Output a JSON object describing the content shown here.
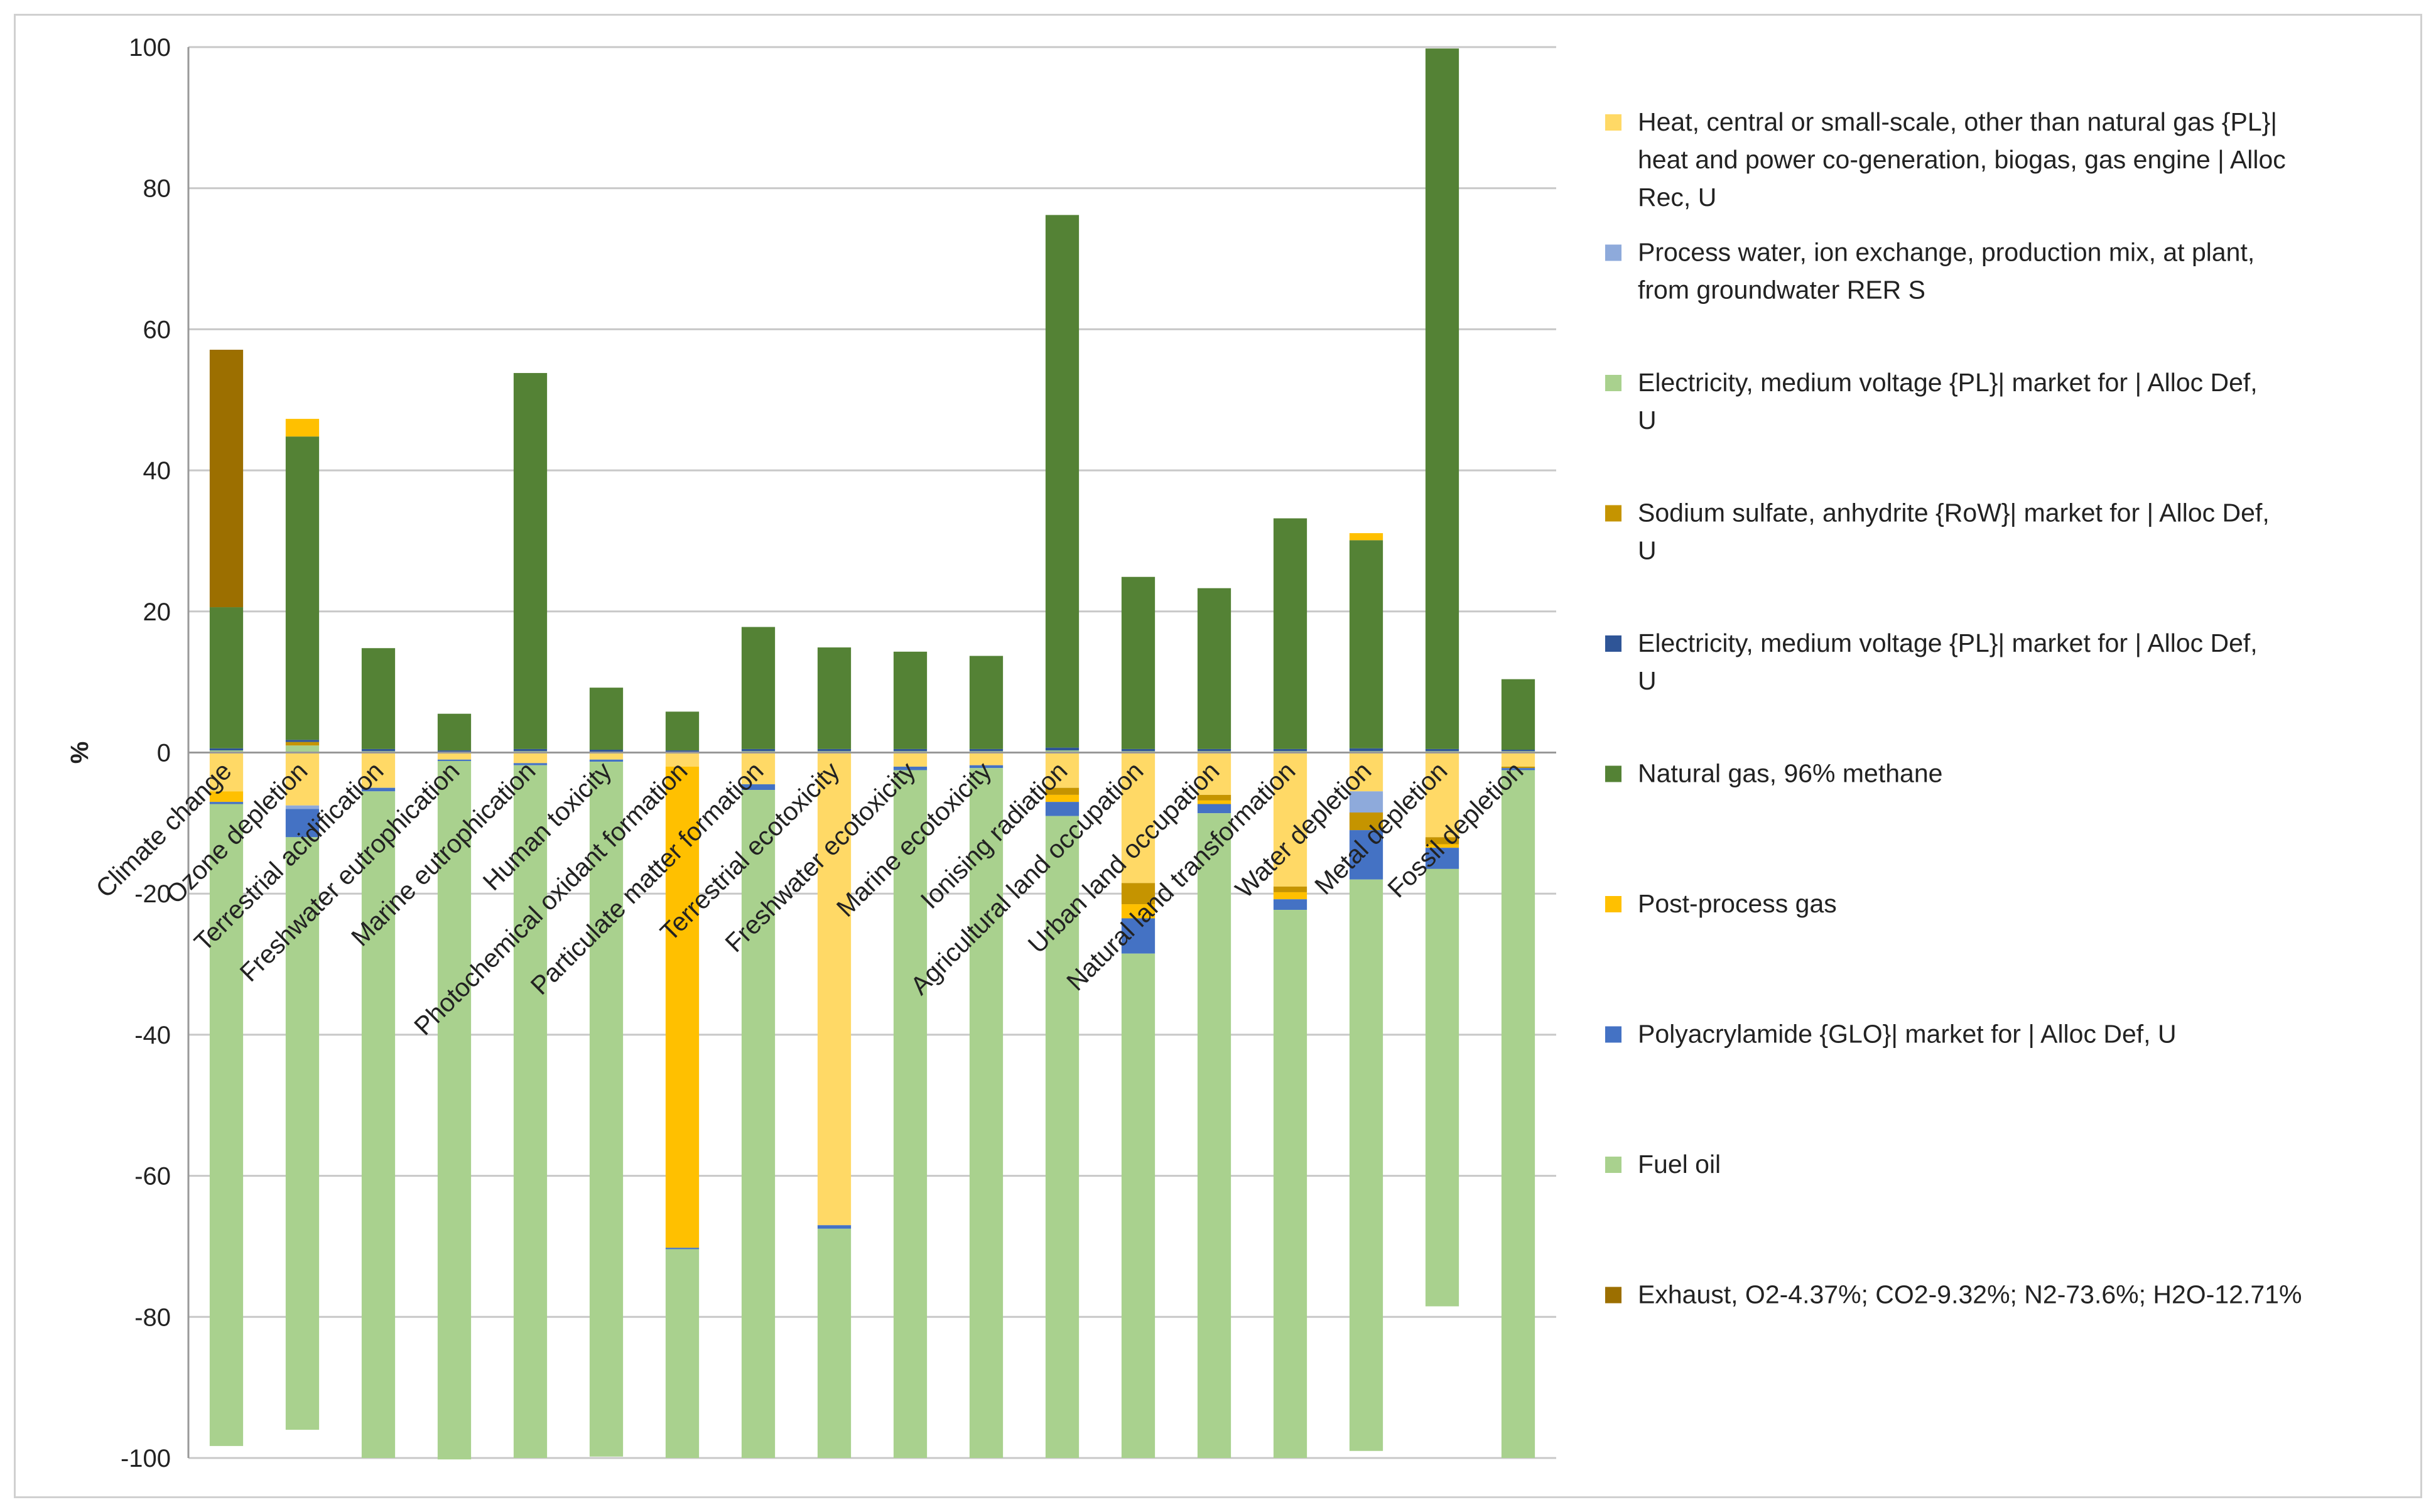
{
  "chart_data": {
    "type": "bar",
    "stacked": true,
    "title": "",
    "xlabel": "",
    "ylabel": "%",
    "ylim": [
      -100,
      100
    ],
    "yticks": [
      "-100",
      "-80",
      "-60",
      "-40",
      "-20",
      "0",
      "20",
      "40",
      "60",
      "80",
      "100"
    ],
    "categories": [
      "Climate change",
      "Ozone depletion",
      "Terrestrial acidification",
      "Freshwater eutrophication",
      "Marine eutrophication",
      "Human toxicity",
      "Photochemical oxidant formation",
      "Particulate matter formation",
      "Terrestrial ecotoxicity",
      "Freshwater ecotoxicity",
      "Marine ecotoxicity",
      "Ionising radiation",
      "Agricultural land occupation",
      "Urban land occupation",
      "Natural land transformation",
      "Water depletion",
      "Metal depletion",
      "Fossil depletion"
    ],
    "series": [
      {
        "name": "Heat, central or small-scale, other than natural gas {PL}| heat and power co-generation, biogas, gas engine | Alloc Rec, U",
        "color": "#ffd966",
        "values": [
          -5.5,
          -7.5,
          -5,
          -1,
          -1.5,
          -1,
          -2,
          -4.5,
          -67,
          -2,
          -1.8,
          -5,
          -18.5,
          -6,
          -19,
          -5.5,
          -12,
          -2
        ]
      },
      {
        "name": "Process water, ion exchange, production mix, at plant, from groundwater RER S",
        "color": "#8eaadb",
        "values": [
          0,
          -0.5,
          0,
          0,
          0,
          0,
          0,
          0,
          0,
          0,
          0,
          0,
          0,
          0,
          0,
          -3,
          0,
          0
        ]
      },
      {
        "name": "Electricity, medium voltage {PL}| market for | Alloc Def, U",
        "color": "#a9d18e",
        "values": [
          0.3,
          1,
          0.2,
          0.1,
          0.2,
          0.1,
          0.1,
          0.2,
          0.2,
          0.2,
          0.2,
          0.3,
          0.2,
          0.2,
          0.2,
          0.2,
          0.2,
          0.2
        ]
      },
      {
        "name": "Sodium sulfate, anhydrite {RoW}| market for | Alloc Def, U",
        "color": "#c59400",
        "values": [
          0,
          0.5,
          0,
          0,
          0,
          0,
          0,
          0,
          0,
          0,
          0,
          -1,
          -3,
          -0.8,
          -0.8,
          -2.5,
          -1,
          -0.2
        ]
      },
      {
        "name": "Electricity, medium voltage {PL}| market for | Alloc Def, U",
        "color": "#2f5597",
        "values": [
          0.3,
          0.3,
          0.3,
          0.2,
          0.3,
          0.3,
          0.2,
          0.3,
          0.3,
          0.3,
          0.3,
          0.4,
          0.3,
          0.3,
          0.3,
          0.4,
          0.3,
          0.2
        ]
      },
      {
        "name": "Natural gas, 96% methane",
        "color": "#548235",
        "values": [
          20,
          43,
          14.3,
          5.2,
          53.3,
          8.8,
          5.5,
          17.3,
          14.4,
          13.8,
          13.2,
          75.5,
          24.4,
          22.8,
          32.7,
          29.5,
          99.3,
          10
        ]
      },
      {
        "name": "Post-process gas",
        "color": "#ffc000",
        "values": [
          -1.5,
          2.5,
          0,
          0,
          0,
          0,
          -68.2,
          0,
          0,
          0,
          0,
          -1,
          -2,
          -0.5,
          -1,
          1,
          -0.5,
          0
        ]
      },
      {
        "name": "Polyacrylamide {GLO}| market for | Alloc Def, U",
        "color": "#4472c4",
        "values": [
          -0.3,
          -4,
          -0.5,
          -0.2,
          -0.3,
          -0.3,
          -0.2,
          -0.8,
          -0.5,
          -0.5,
          -0.4,
          -2,
          -5,
          -1.3,
          -1.5,
          -7,
          -3,
          -0.3
        ]
      },
      {
        "name": "Fuel oil",
        "color": "#a9d18e",
        "values": [
          -91,
          -84,
          -94.5,
          -99,
          -98.2,
          -98.5,
          -29.6,
          -94.7,
          -32.5,
          -97.5,
          -97.8,
          -91,
          -71.5,
          -91.4,
          -77.7,
          -81,
          -62,
          -97.5
        ]
      },
      {
        "name": "Exhaust, O2-4.37%; CO2-9.32%; N2-73.6%; H2O-12.71%",
        "color": "#9c6f00",
        "values": [
          36.5,
          0,
          0,
          0,
          0,
          0,
          0,
          0,
          0,
          0,
          0,
          0,
          0,
          0,
          0,
          0,
          0,
          0
        ]
      }
    ],
    "legend": {
      "placement": "right",
      "entries": [
        {
          "label": "Heat, central or small-scale, other than natural gas {PL}| heat and power co-generation, biogas, gas engine | Alloc Rec, U",
          "color": "#ffd966",
          "lines": [
            "Heat, central or small-scale, other than natural gas {PL}|",
            "heat and power co-generation, biogas, gas engine | Alloc",
            "Rec, U"
          ]
        },
        {
          "label": "Process water, ion exchange, production mix, at plant, from groundwater RER S",
          "color": "#8eaadb",
          "lines": [
            "Process water, ion exchange, production mix, at plant,",
            "from groundwater RER S"
          ]
        },
        {
          "label": "Electricity, medium voltage {PL}| market for | Alloc Def, U",
          "color": "#a9d18e",
          "lines": [
            "Electricity, medium voltage {PL}| market for | Alloc Def,",
            "U"
          ]
        },
        {
          "label": "Sodium sulfate, anhydrite {RoW}| market for | Alloc Def, U",
          "color": "#c59400",
          "lines": [
            "Sodium sulfate, anhydrite {RoW}| market for | Alloc Def,",
            "U"
          ]
        },
        {
          "label": "Electricity, medium voltage {PL}| market for | Alloc Def, U",
          "color": "#2f5597",
          "lines": [
            "Electricity, medium voltage {PL}| market for | Alloc Def,",
            "U"
          ]
        },
        {
          "label": "Natural gas, 96% methane",
          "color": "#548235",
          "lines": [
            "Natural gas, 96% methane"
          ]
        },
        {
          "label": "Post-process gas",
          "color": "#ffc000",
          "lines": [
            "Post-process gas"
          ]
        },
        {
          "label": "Polyacrylamide {GLO}| market for | Alloc Def, U",
          "color": "#4472c4",
          "lines": [
            "Polyacrylamide {GLO}| market for | Alloc Def, U"
          ]
        },
        {
          "label": "Fuel oil",
          "color": "#a9d18e",
          "lines": [
            "Fuel oil"
          ]
        },
        {
          "label": "Exhaust, O2-4.37%; CO2-9.32%; N2-73.6%; H2O-12.71%",
          "color": "#9c6f00",
          "lines": [
            "Exhaust, O2-4.37%; CO2-9.32%; N2-73.6%; H2O-12.71%"
          ]
        }
      ]
    },
    "grid": true
  }
}
